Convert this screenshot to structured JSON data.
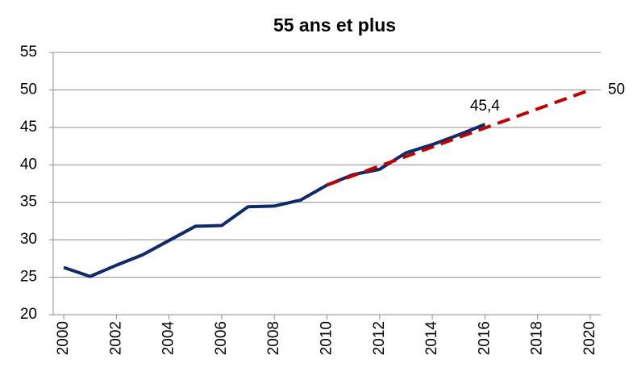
{
  "chart_data": {
    "type": "line",
    "title": "55 ans et plus",
    "series": [
      {
        "color": "#0e2a6b",
        "dashed": false,
        "x": [
          2000,
          2001,
          2002,
          2003,
          2004,
          2005,
          2006,
          2007,
          2008,
          2009,
          2010,
          2011,
          2012,
          2013,
          2014,
          2015,
          2016
        ],
        "values": [
          26.3,
          25.1,
          26.6,
          28.0,
          29.9,
          31.8,
          31.9,
          34.4,
          34.5,
          35.3,
          37.3,
          38.7,
          39.4,
          41.6,
          42.7,
          44.0,
          45.4
        ],
        "value_labels": [
          null,
          null,
          null,
          null,
          null,
          null,
          null,
          null,
          null,
          null,
          null,
          null,
          null,
          null,
          null,
          null,
          "45,4"
        ]
      },
      {
        "color": "#c00000",
        "dashed": true,
        "x": [
          2010,
          2020
        ],
        "values": [
          37.3,
          50
        ],
        "value_labels": [
          null,
          "50"
        ]
      }
    ],
    "xlim": [
      1999.6,
      2020.4
    ],
    "xticks": [
      2000,
      2002,
      2004,
      2006,
      2008,
      2010,
      2012,
      2014,
      2016,
      2018,
      2020
    ],
    "ylim": [
      20,
      55
    ],
    "yticks": [
      20,
      25,
      30,
      35,
      40,
      45,
      50,
      55
    ],
    "grid": true
  }
}
